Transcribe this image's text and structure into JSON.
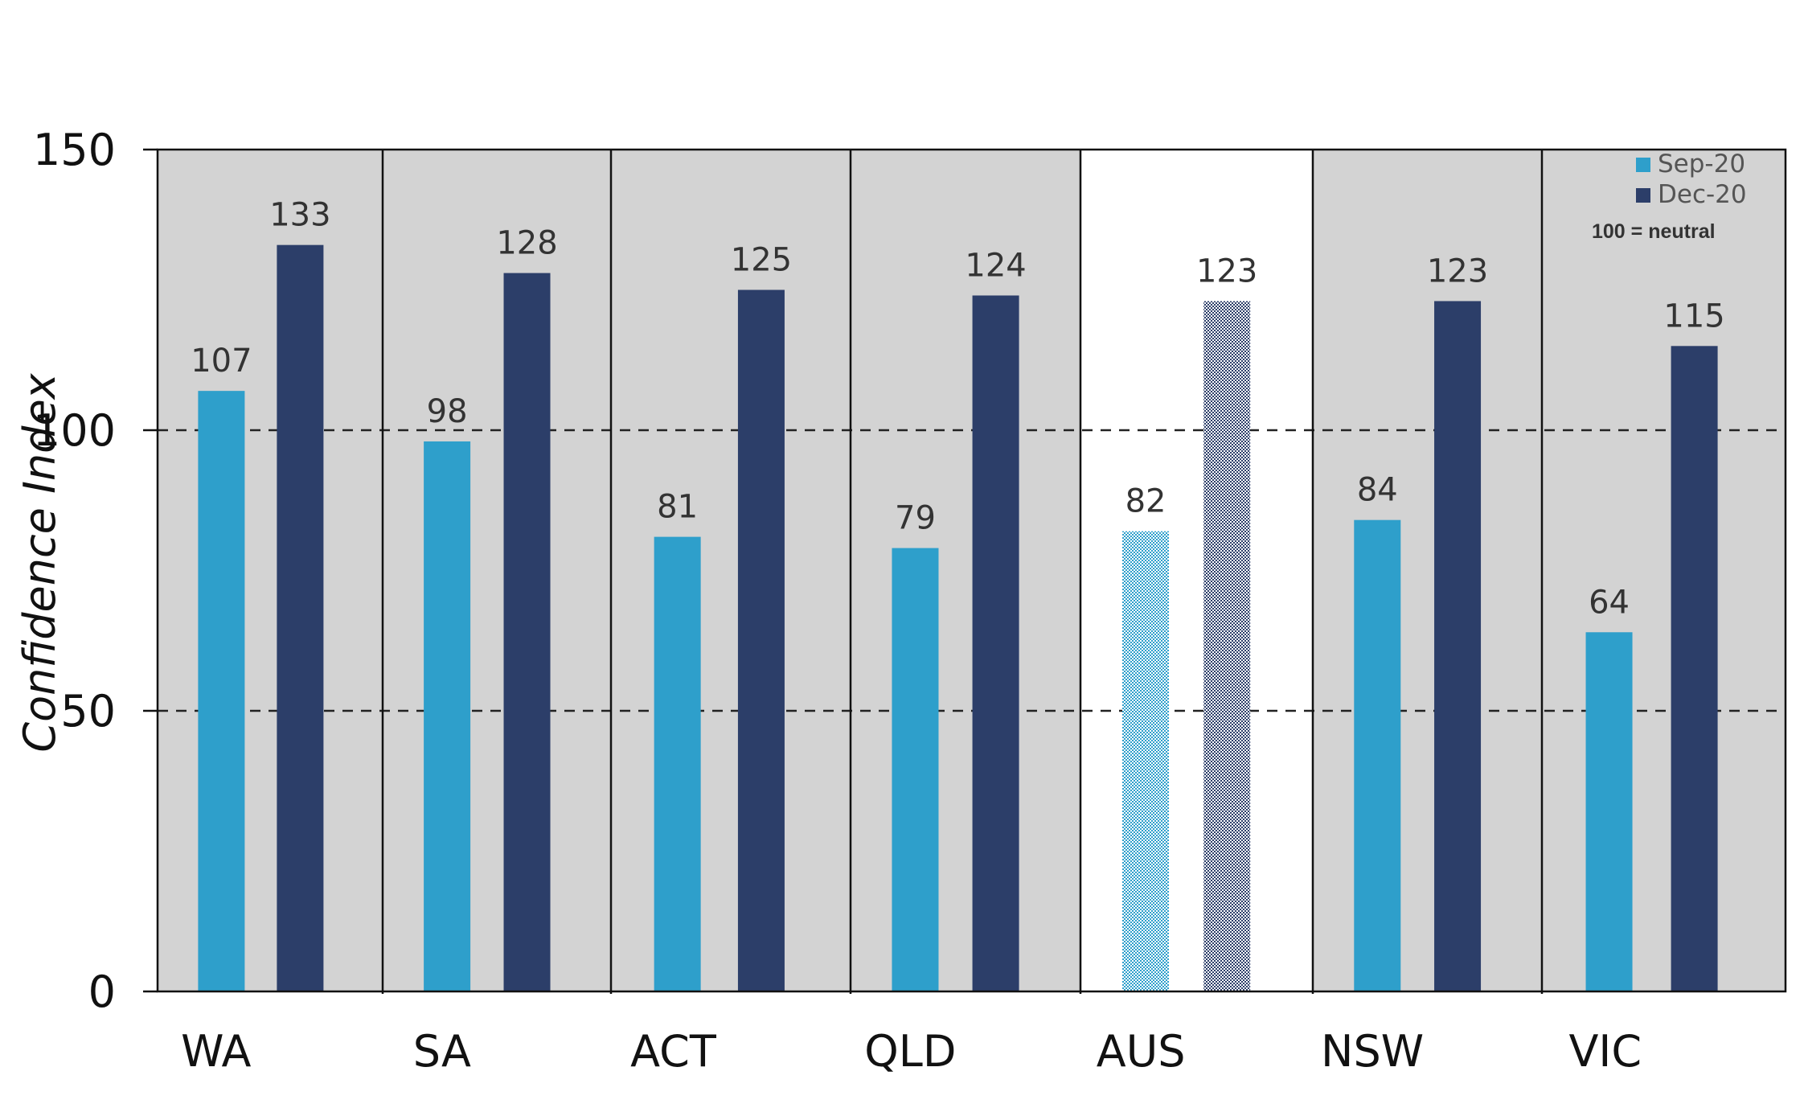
{
  "chart_data": {
    "type": "bar",
    "categories": [
      "WA",
      "SA",
      "ACT",
      "QLD",
      "AUS",
      "NSW",
      "VIC"
    ],
    "highlight_category": "AUS",
    "series": [
      {
        "name": "Sep-20",
        "values": [
          107,
          98,
          81,
          79,
          82,
          84,
          64
        ],
        "color": "#2e9fcb"
      },
      {
        "name": "Dec-20",
        "values": [
          133,
          128,
          125,
          124,
          123,
          123,
          115
        ],
        "color": "#2c3e69"
      }
    ],
    "value_labels": {
      "Sep-20": [
        "107",
        "98",
        "81",
        "79",
        "82",
        "84",
        "64"
      ],
      "Dec-20": [
        "133",
        "128",
        "125",
        "124",
        "123",
        "123",
        "115"
      ]
    },
    "ylabel": "Confidence Index",
    "xlabel": "",
    "ylim": [
      0,
      150
    ],
    "yticks": [
      0,
      50,
      100,
      150
    ],
    "ytick_labels": [
      "0",
      "50",
      "100",
      "150"
    ],
    "reference_lines": [
      50,
      100
    ],
    "annotation": "100 = neutral",
    "legend_position": "top-right",
    "grid": false,
    "panel_background": "#d3d3d3",
    "highlight_background": "#ffffff"
  }
}
